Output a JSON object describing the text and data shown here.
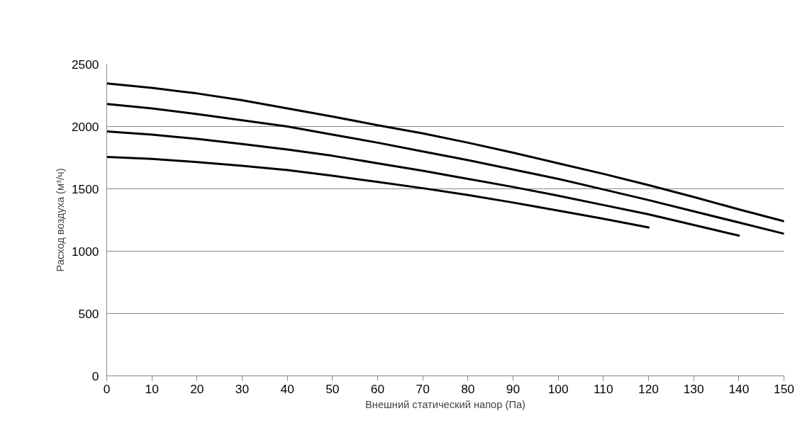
{
  "chart_data": {
    "type": "line",
    "xlabel": "Внешний статический напор (Па)",
    "ylabel": "Расход воздуха (м³/ч)",
    "x": [
      0,
      10,
      20,
      30,
      40,
      50,
      60,
      70,
      80,
      90,
      100,
      110,
      120,
      130,
      140,
      150
    ],
    "series": [
      {
        "color": "#000000",
        "values": [
          2345,
          2310,
          2265,
          2210,
          2145,
          2080,
          2010,
          1945,
          1870,
          1790,
          1705,
          1620,
          1530,
          1435,
          1335,
          1240
        ]
      },
      {
        "color": "#000000",
        "values": [
          2180,
          2145,
          2100,
          2050,
          2000,
          1935,
          1870,
          1800,
          1730,
          1655,
          1580,
          1495,
          1410,
          1320,
          1230,
          1140
        ]
      },
      {
        "color": "#000000",
        "values": [
          1960,
          1935,
          1900,
          1860,
          1815,
          1765,
          1705,
          1645,
          1580,
          1515,
          1445,
          1370,
          1295,
          1210,
          1125,
          null
        ]
      },
      {
        "color": "#000000",
        "values": [
          1755,
          1740,
          1715,
          1685,
          1650,
          1605,
          1555,
          1505,
          1450,
          1390,
          1325,
          1260,
          1190,
          null,
          null,
          null
        ]
      }
    ],
    "xlim": [
      0,
      150
    ],
    "xticks": [
      0,
      10,
      20,
      30,
      40,
      50,
      60,
      70,
      80,
      90,
      100,
      110,
      120,
      130,
      140,
      150
    ],
    "ylim": [
      0,
      2500
    ],
    "yticks": [
      0,
      500,
      1000,
      1500,
      2000,
      2500
    ],
    "grid": "y",
    "marker": "none",
    "line_style": "solid"
  }
}
